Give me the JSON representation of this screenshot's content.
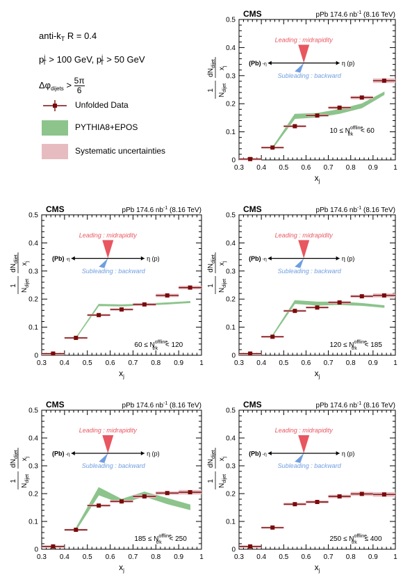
{
  "legend": {
    "algo": "anti-k",
    "algo_sub": "T",
    "radius": "R = 0.4",
    "lead_cut_prefix": "p",
    "lead_cut_sup": "j",
    "lead_cut_sub": "T",
    "lead_cut_value": "> 100 GeV,",
    "sub_cut_prefix": "p",
    "sub_cut_sup": "j",
    "sub_cut_sub": "T",
    "sub_cut_value": "> 50 GeV",
    "dphi_prefix": "Δφ",
    "dphi_sub": "dijets",
    "dphi_op": ">",
    "dphi_num": "5π",
    "dphi_den": "6",
    "data_label": "Unfolded Data",
    "model_label": "PYTHIA8+EPOS",
    "syst_label": "Systematic uncertainties"
  },
  "common": {
    "experiment": "CMS",
    "lumi_prefix": "pPb 174.6 nb",
    "lumi_sup": "-1",
    "lumi_energy": "(8.16 TeV)",
    "leading_label": "Leading : midrapidity",
    "subleading_label": "Subleading : backward",
    "pb_label": "(Pb)",
    "minus_eta_label": "-η",
    "eta_label": "η (p)",
    "xlabel": "x",
    "xlabel_sub": "j",
    "ylabel_num": "dN",
    "ylabel_num_sub": "dijet",
    "ylabel_den": "x",
    "ylabel_den_sub": "j",
    "ylabel_pre_num": "1",
    "ylabel_pre_den": "N",
    "ylabel_pre_den_sub": "dijet",
    "xticks": [
      "0.3",
      "0.4",
      "0.5",
      "0.6",
      "0.7",
      "0.8",
      "0.9",
      "1"
    ],
    "yticks": [
      "0",
      "0.1",
      "0.2",
      "0.3",
      "0.4",
      "0.5"
    ],
    "colors": {
      "data": "#7a0b0b",
      "syst": "#e6bcc1",
      "model": "#8cc48c",
      "leading": "#e85660",
      "subleading": "#6f9ee0"
    }
  },
  "chart_data": [
    {
      "type": "scatter",
      "xlim": [
        0.3,
        1.0
      ],
      "ylim": [
        0,
        0.5
      ],
      "range_label": {
        "lo": "10 ≤ N",
        "sup": "offline",
        "sub": "trk",
        "hi": "< 60"
      },
      "x": [
        0.35,
        0.45,
        0.55,
        0.65,
        0.75,
        0.85,
        0.95
      ],
      "data": [
        0.003,
        0.044,
        0.12,
        0.158,
        0.186,
        0.222,
        0.282
      ],
      "syst": [
        0.003,
        0.003,
        0.004,
        0.004,
        0.005,
        0.006,
        0.008
      ],
      "model": [
        {
          "x": 0.45,
          "lo": 0.04,
          "hi": 0.045
        },
        {
          "x": 0.55,
          "lo": 0.147,
          "hi": 0.163
        },
        {
          "x": 0.65,
          "lo": 0.152,
          "hi": 0.166
        },
        {
          "x": 0.75,
          "lo": 0.165,
          "hi": 0.18
        },
        {
          "x": 0.85,
          "lo": 0.185,
          "hi": 0.2
        },
        {
          "x": 0.95,
          "lo": 0.232,
          "hi": 0.242
        }
      ]
    },
    {
      "type": "scatter",
      "xlim": [
        0.3,
        1.0
      ],
      "ylim": [
        0,
        0.5
      ],
      "range_label": {
        "lo": "60 ≤ N",
        "sup": "offline",
        "sub": "trk",
        "hi": "< 120"
      },
      "x": [
        0.35,
        0.45,
        0.55,
        0.65,
        0.75,
        0.85,
        0.95
      ],
      "data": [
        0.006,
        0.062,
        0.143,
        0.163,
        0.181,
        0.213,
        0.241
      ],
      "syst": [
        0.002,
        0.003,
        0.004,
        0.004,
        0.005,
        0.006,
        0.006
      ],
      "model": [
        {
          "x": 0.45,
          "lo": 0.06,
          "hi": 0.063
        },
        {
          "x": 0.55,
          "lo": 0.176,
          "hi": 0.182
        },
        {
          "x": 0.65,
          "lo": 0.175,
          "hi": 0.18
        },
        {
          "x": 0.75,
          "lo": 0.178,
          "hi": 0.183
        },
        {
          "x": 0.85,
          "lo": 0.182,
          "hi": 0.187
        },
        {
          "x": 0.95,
          "lo": 0.187,
          "hi": 0.192
        }
      ]
    },
    {
      "type": "scatter",
      "xlim": [
        0.3,
        1.0
      ],
      "ylim": [
        0,
        0.5
      ],
      "range_label": {
        "lo": "120 ≤ N",
        "sup": "offline",
        "sub": "trk",
        "hi": "< 185"
      },
      "x": [
        0.35,
        0.45,
        0.55,
        0.65,
        0.75,
        0.85,
        0.95
      ],
      "data": [
        0.006,
        0.066,
        0.158,
        0.17,
        0.188,
        0.21,
        0.213
      ],
      "syst": [
        0.002,
        0.003,
        0.004,
        0.004,
        0.005,
        0.005,
        0.007
      ],
      "model": [
        {
          "x": 0.45,
          "lo": 0.068,
          "hi": 0.072
        },
        {
          "x": 0.55,
          "lo": 0.184,
          "hi": 0.195
        },
        {
          "x": 0.65,
          "lo": 0.178,
          "hi": 0.19
        },
        {
          "x": 0.75,
          "lo": 0.18,
          "hi": 0.19
        },
        {
          "x": 0.85,
          "lo": 0.177,
          "hi": 0.185
        },
        {
          "x": 0.95,
          "lo": 0.17,
          "hi": 0.177
        }
      ]
    },
    {
      "type": "scatter",
      "xlim": [
        0.3,
        1.0
      ],
      "ylim": [
        0,
        0.5
      ],
      "range_label": {
        "lo": "185 ≤ N",
        "sup": "offline",
        "sub": "trk",
        "hi": "< 250"
      },
      "x": [
        0.35,
        0.45,
        0.55,
        0.65,
        0.75,
        0.85,
        0.95
      ],
      "data": [
        0.01,
        0.07,
        0.157,
        0.172,
        0.19,
        0.202,
        0.205
      ],
      "syst": [
        0.003,
        0.003,
        0.004,
        0.005,
        0.006,
        0.006,
        0.008
      ],
      "model": [
        {
          "x": 0.45,
          "lo": 0.068,
          "hi": 0.076
        },
        {
          "x": 0.55,
          "lo": 0.195,
          "hi": 0.222
        },
        {
          "x": 0.65,
          "lo": 0.165,
          "hi": 0.18
        },
        {
          "x": 0.75,
          "lo": 0.19,
          "hi": 0.206
        },
        {
          "x": 0.85,
          "lo": 0.163,
          "hi": 0.183
        },
        {
          "x": 0.95,
          "lo": 0.142,
          "hi": 0.16
        }
      ]
    },
    {
      "type": "scatter",
      "xlim": [
        0.3,
        1.0
      ],
      "ylim": [
        0,
        0.5
      ],
      "range_label": {
        "lo": "250 ≤ N",
        "sup": "offline",
        "sub": "trk",
        "hi": "≤ 400"
      },
      "x": [
        0.35,
        0.45,
        0.55,
        0.65,
        0.75,
        0.85,
        0.95
      ],
      "data": [
        0.01,
        0.078,
        0.162,
        0.17,
        0.19,
        0.199,
        0.197
      ],
      "syst": [
        0.003,
        0.003,
        0.005,
        0.005,
        0.006,
        0.007,
        0.008
      ],
      "model": []
    }
  ]
}
